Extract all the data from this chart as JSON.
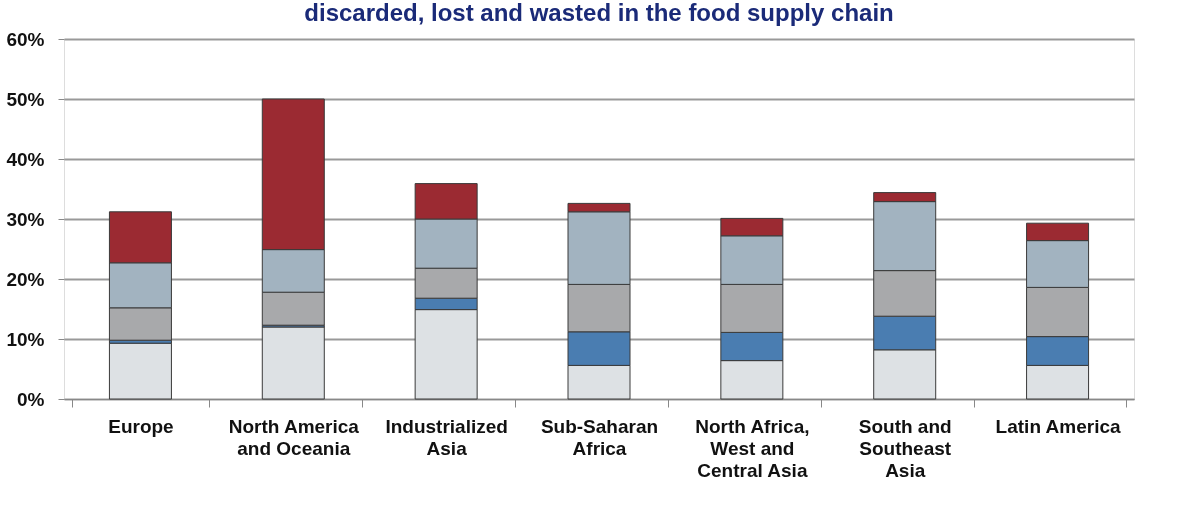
{
  "chart_data": {
    "type": "bar",
    "stacked": true,
    "title": "discarded, lost and wasted in the food supply chain",
    "categories": [
      "Europe",
      "North America and Oceania",
      "Industrialized Asia",
      "Sub-Saharan Africa",
      "North Africa, West and Central Asia",
      "South and Southeast Asia",
      "Latin America"
    ],
    "series": [
      {
        "color": "#dde1e4",
        "values": [
          9.3,
          12.0,
          14.9,
          5.6,
          6.4,
          8.2,
          5.6
        ]
      },
      {
        "color": "#4a7db1",
        "values": [
          0.5,
          0.3,
          1.9,
          5.6,
          4.7,
          5.6,
          4.8
        ]
      },
      {
        "color": "#a8a9ab",
        "values": [
          5.4,
          5.5,
          5.0,
          7.9,
          8.0,
          7.6,
          8.2
        ]
      },
      {
        "color": "#a2b3c0",
        "values": [
          7.5,
          7.1,
          8.2,
          12.1,
          8.1,
          11.5,
          7.8
        ]
      },
      {
        "color": "#9b2a32",
        "values": [
          8.5,
          25.1,
          5.9,
          1.4,
          2.9,
          1.5,
          2.9
        ]
      }
    ],
    "ylim": [
      0,
      60
    ],
    "yticks": [
      {
        "value": 0,
        "label": "0%"
      },
      {
        "value": 10,
        "label": "10%"
      },
      {
        "value": 20,
        "label": "20%"
      },
      {
        "value": 30,
        "label": "30%"
      },
      {
        "value": 40,
        "label": "40%"
      },
      {
        "value": 50,
        "label": "50%"
      },
      {
        "value": 60,
        "label": "60%"
      }
    ],
    "grid": "y",
    "legend": false
  }
}
